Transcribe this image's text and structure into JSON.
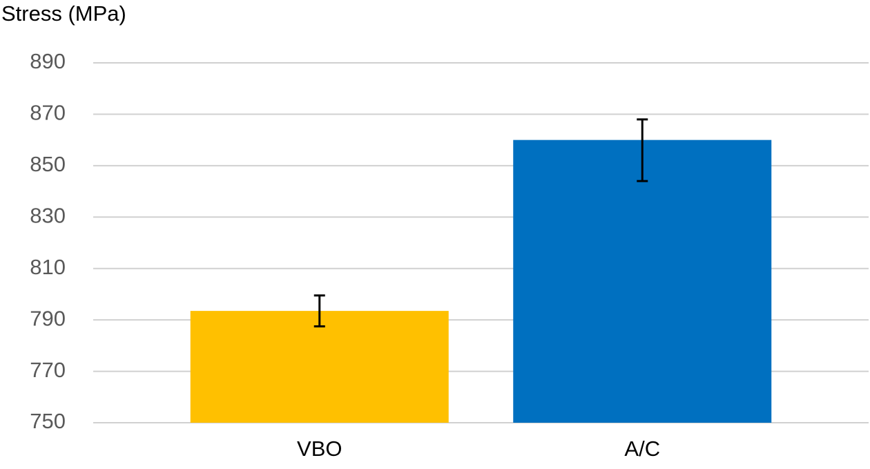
{
  "chart_data": {
    "type": "bar",
    "y_axis_label": "Stress (MPa)",
    "categories": [
      "VBO",
      "A/C"
    ],
    "values": [
      793.5,
      860
    ],
    "colors": [
      "#ffc000",
      "#0070c0"
    ],
    "error_minus": [
      6,
      16
    ],
    "error_plus": [
      6,
      8
    ],
    "ylim": [
      750,
      890
    ],
    "yticks": [
      750,
      770,
      790,
      810,
      830,
      850,
      870,
      890
    ],
    "grid": true
  }
}
